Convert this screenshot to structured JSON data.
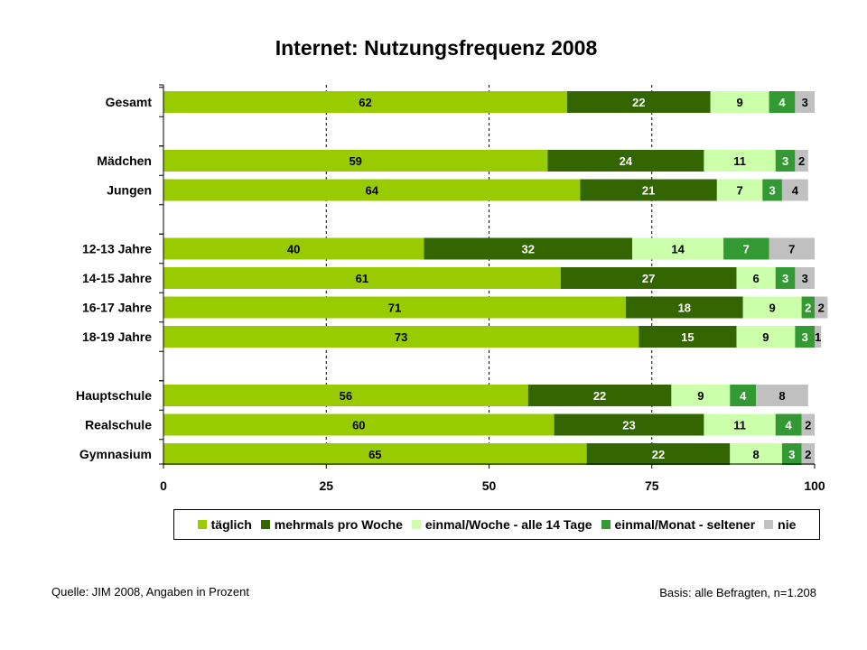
{
  "page": {
    "title": "Internet: Nutzungsfrequenz 2008",
    "source": "Quelle: JIM 2008, Angaben in Prozent",
    "basis": "Basis: alle Befragten, n=1.208"
  },
  "chart_data": {
    "type": "bar",
    "orientation": "horizontal",
    "stacked": true,
    "title": "Internet: Nutzungsfrequenz 2008",
    "categories": [
      "Gesamt",
      "Mädchen",
      "Jungen",
      "12-13 Jahre",
      "14-15 Jahre",
      "16-17 Jahre",
      "18-19 Jahre",
      "Hauptschule",
      "Realschule",
      "Gymnasium"
    ],
    "groups": [
      [
        0
      ],
      [
        1,
        2
      ],
      [
        3,
        4,
        5,
        6
      ],
      [
        7,
        8,
        9
      ]
    ],
    "series": [
      {
        "name": "täglich",
        "color": "#99cc00",
        "label_color": "#000000",
        "values": [
          62,
          59,
          64,
          40,
          61,
          71,
          73,
          56,
          60,
          65
        ]
      },
      {
        "name": "mehrmals pro Woche",
        "color": "#336600",
        "label_color": "#ffffff",
        "values": [
          22,
          24,
          21,
          32,
          27,
          18,
          15,
          22,
          23,
          22
        ]
      },
      {
        "name": "einmal/Woche - alle 14 Tage",
        "color": "#ccffaa",
        "label_color": "#000000",
        "values": [
          9,
          11,
          7,
          14,
          6,
          9,
          9,
          9,
          11,
          8
        ]
      },
      {
        "name": "einmal/Monat - seltener",
        "color": "#339933",
        "label_color": "#ffffff",
        "values": [
          4,
          3,
          3,
          7,
          3,
          2,
          3,
          4,
          4,
          3
        ]
      },
      {
        "name": "nie",
        "color": "#c0c0c0",
        "label_color": "#000000",
        "values": [
          3,
          2,
          4,
          7,
          3,
          2,
          1,
          8,
          2,
          2
        ]
      }
    ],
    "xlim": [
      0,
      100
    ],
    "xticks": [
      0,
      25,
      50,
      75,
      100
    ],
    "gridlines": "dashed vertical at 25, 50, 75",
    "legend_position": "bottom"
  }
}
